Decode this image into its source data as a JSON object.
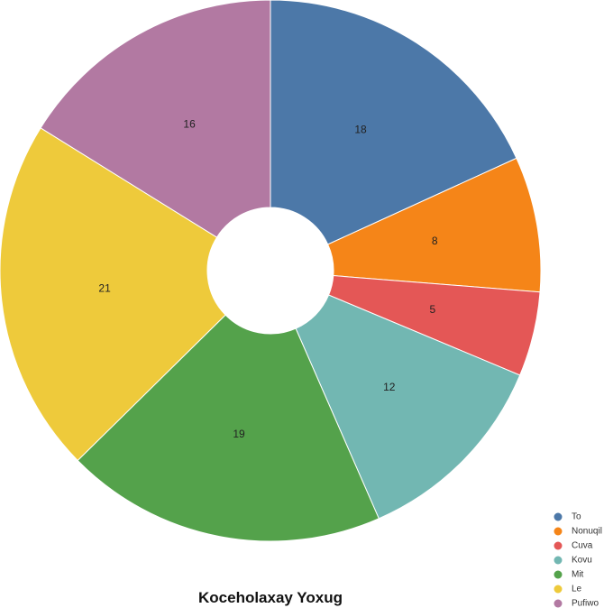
{
  "chart_data": {
    "type": "pie",
    "donut": true,
    "title": "Koceholaxay Yoxug",
    "categories": [
      "To",
      "Nonuqil",
      "Cuva",
      "Kovu",
      "Mit",
      "Le",
      "Pufiwo"
    ],
    "values": [
      18,
      8,
      5,
      12,
      19,
      21,
      16
    ],
    "colors": [
      "#4c78a8",
      "#f58518",
      "#e45756",
      "#72b7b2",
      "#54a24b",
      "#eeca3b",
      "#b279a2"
    ],
    "legend": "bottom-right",
    "start_angle": "12 o'clock",
    "direction": "clockwise"
  }
}
